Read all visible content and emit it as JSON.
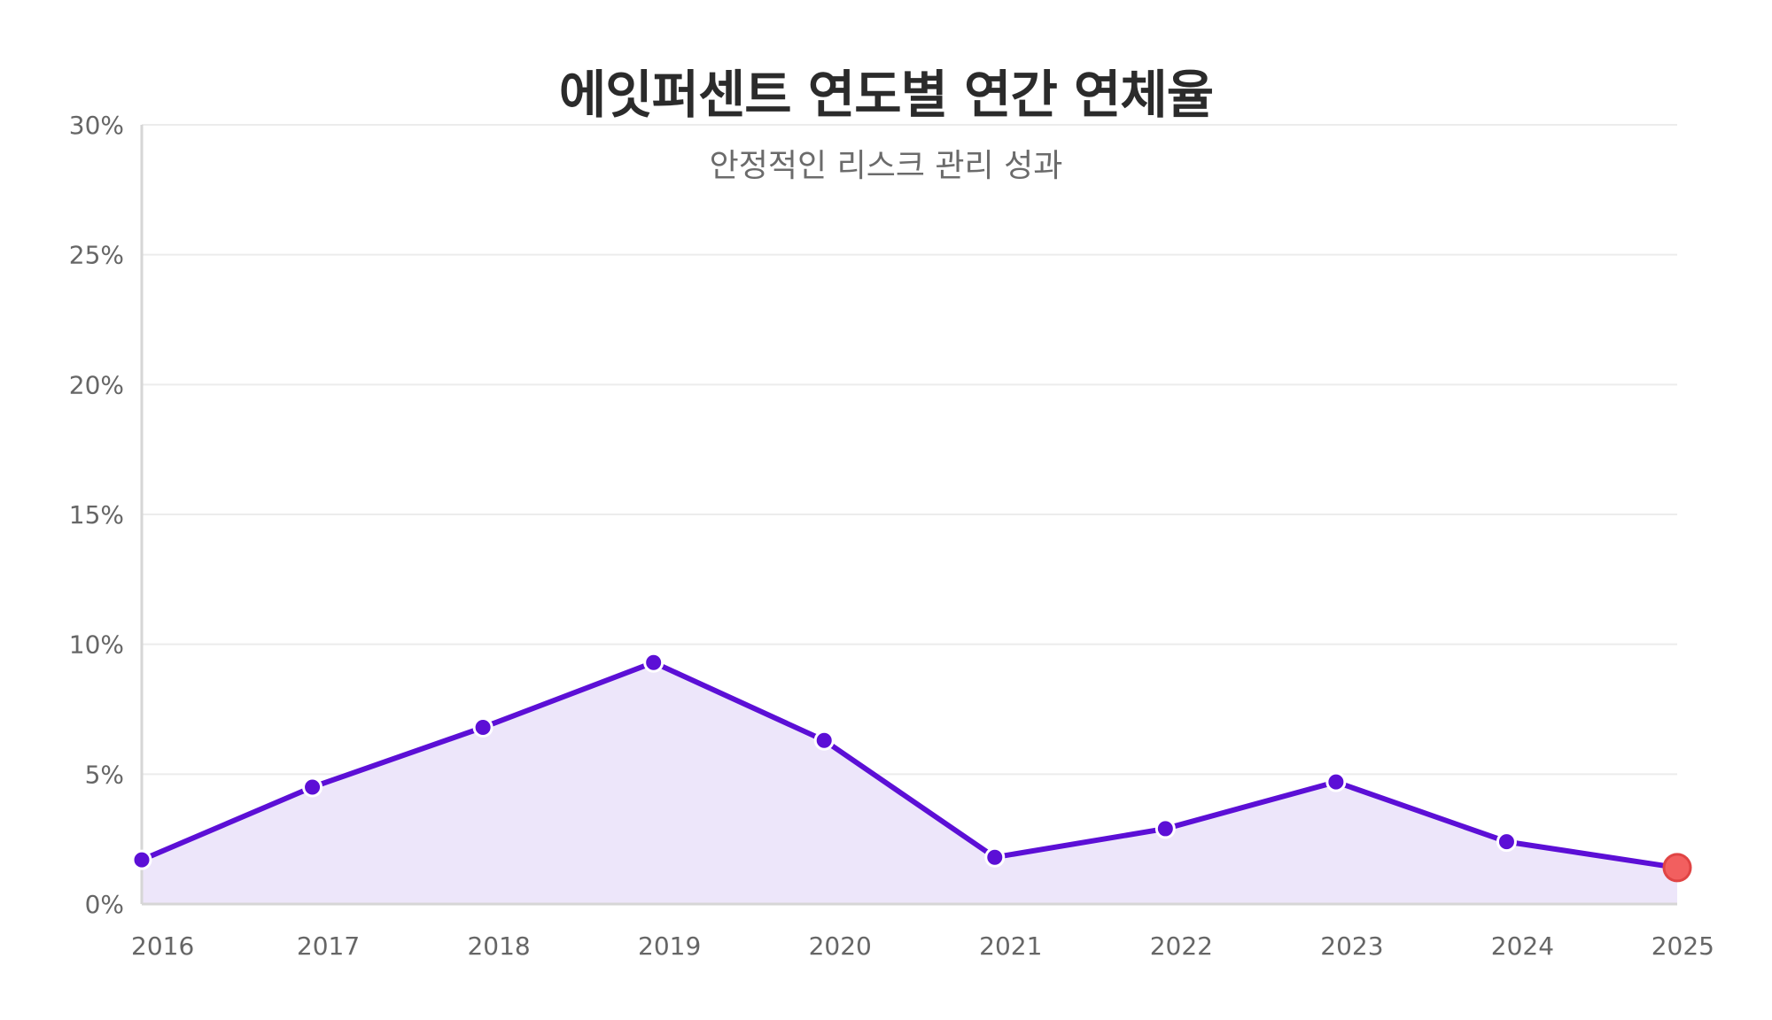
{
  "chart_data": {
    "type": "area",
    "title": "에잇퍼센트 연도별 연간 연체율",
    "subtitle": "안정적인 리스크 관리 성과",
    "xlabel": "",
    "ylabel": "",
    "categories": [
      "2016",
      "2017",
      "2018",
      "2019",
      "2020",
      "2021",
      "2022",
      "2023",
      "2024",
      "2025"
    ],
    "values": [
      1.7,
      4.5,
      6.8,
      9.3,
      6.3,
      1.8,
      2.9,
      4.7,
      2.4,
      1.4
    ],
    "ylim": [
      0,
      30
    ],
    "yticks": [
      0,
      5,
      10,
      15,
      20,
      25,
      30
    ],
    "ytick_labels": [
      "0%",
      "5%",
      "10%",
      "15%",
      "20%",
      "25%",
      "30%"
    ],
    "grid": true,
    "highlight_last_point": true,
    "colors": {
      "line": "#5c0fd6",
      "fill": "#ede6fa",
      "point": "#5c0fd6",
      "highlight_point": "#f25f5f",
      "grid": "#ececec",
      "axis": "#d6d6d6"
    }
  }
}
